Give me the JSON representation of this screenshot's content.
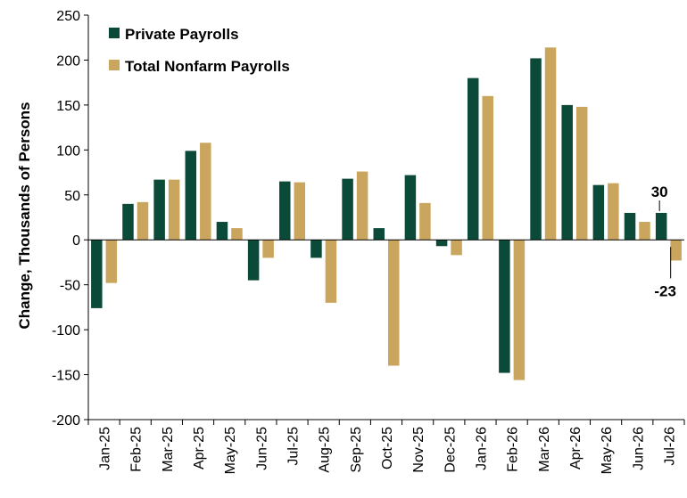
{
  "chart_data": {
    "type": "bar",
    "categories": [
      "Jan-25",
      "Feb-25",
      "Mar-25",
      "Apr-25",
      "May-25",
      "Jun-25",
      "Jul-25",
      "Aug-25",
      "Sep-25",
      "Oct-25",
      "Nov-25",
      "Dec-25",
      "Jan-26",
      "Feb-26",
      "Mar-26",
      "Apr-26",
      "May-26",
      "Jun-26",
      "Jul-26"
    ],
    "series": [
      {
        "name": "Private Payrolls",
        "color": "#0b4a38",
        "values": [
          -76,
          40,
          67,
          99,
          20,
          -45,
          65,
          -20,
          68,
          13,
          72,
          -7,
          180,
          -148,
          202,
          150,
          61,
          30,
          30
        ]
      },
      {
        "name": "Total Nonfarm Payrolls",
        "color": "#c9a55d",
        "values": [
          -48,
          42,
          67,
          108,
          13,
          -20,
          64,
          -70,
          76,
          -140,
          41,
          -17,
          160,
          -156,
          214,
          148,
          63,
          20,
          -23
        ]
      }
    ],
    "title": "",
    "xlabel": "",
    "ylabel": "Change, Thousands of Persons",
    "ylim": [
      -200,
      250
    ],
    "yticks": [
      -200,
      -150,
      -100,
      -50,
      0,
      50,
      100,
      150,
      200,
      250
    ],
    "ytick_labels": [
      "-200",
      "-150",
      "-100",
      "-50",
      "0",
      "50",
      "100",
      "150",
      "200",
      "250"
    ],
    "grid": false,
    "legend_position": "top-left",
    "annotations": [
      {
        "text": "30",
        "series": 0,
        "category": "Jul-26"
      },
      {
        "text": "-23",
        "series": 1,
        "category": "Jul-26"
      }
    ]
  }
}
